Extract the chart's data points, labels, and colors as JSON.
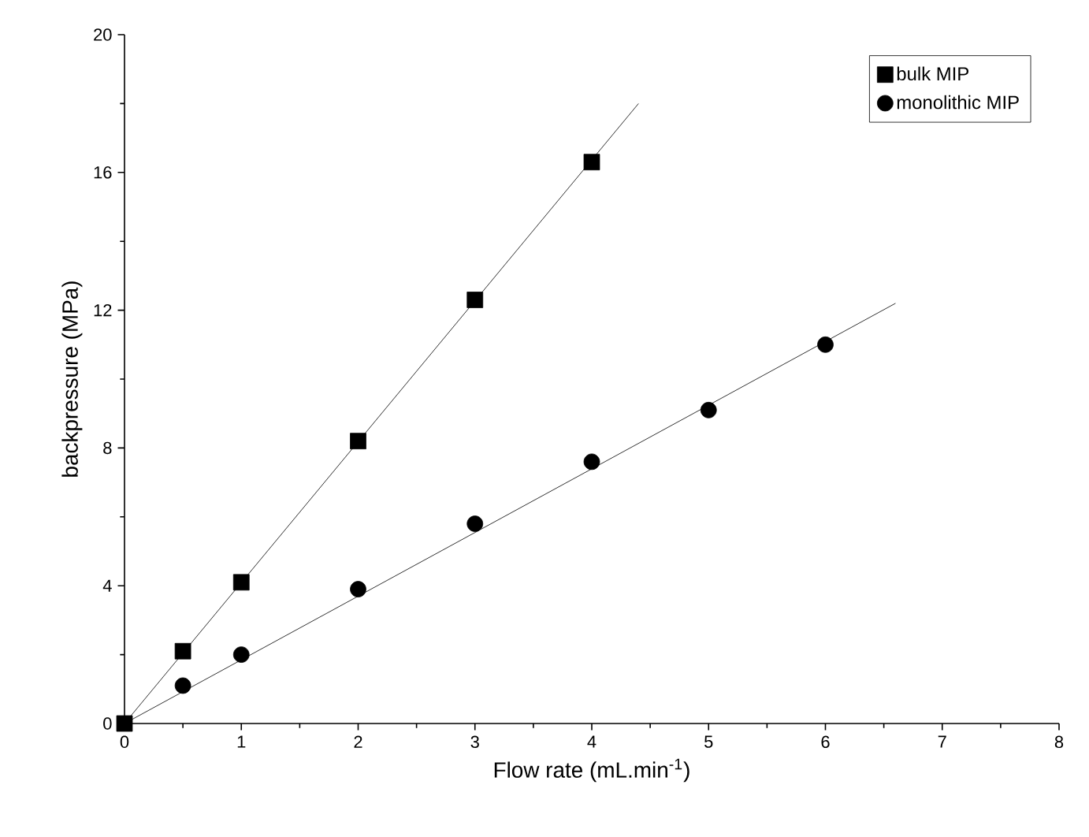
{
  "chart_data": {
    "type": "scatter",
    "xlabel": "Flow rate (mL.min$^{-1}$)",
    "ylabel": "backpressure (MPa)",
    "xlim": [
      0,
      8
    ],
    "xticks": [
      0,
      1,
      2,
      3,
      4,
      5,
      6,
      7,
      8
    ],
    "ylim": [
      0,
      20
    ],
    "yticks": [
      0,
      4,
      8,
      12,
      16,
      20
    ],
    "grid": false,
    "legend": "top right",
    "series": [
      {
        "name": "bulk MIP",
        "marker": "square",
        "color": "#000000",
        "x": [
          0,
          0.5,
          1,
          2,
          3,
          4
        ],
        "values": [
          0,
          2.1,
          4.1,
          8.2,
          12.3,
          16.3
        ]
      },
      {
        "name": "monolithic MIP",
        "marker": "circle",
        "color": "#000000",
        "x": [
          0.5,
          1,
          2,
          3,
          4,
          5,
          6
        ],
        "values": [
          1.1,
          2.0,
          3.9,
          5.8,
          7.6,
          9.1,
          11.0
        ]
      },
      {
        "type": "line",
        "marker": "none",
        "color": "#000000",
        "x": [
          0,
          4.4
        ],
        "values": [
          0,
          18.0
        ]
      },
      {
        "type": "line",
        "marker": "none",
        "color": "#000000",
        "x": [
          0,
          6.6
        ],
        "values": [
          0,
          12.2
        ]
      }
    ]
  }
}
